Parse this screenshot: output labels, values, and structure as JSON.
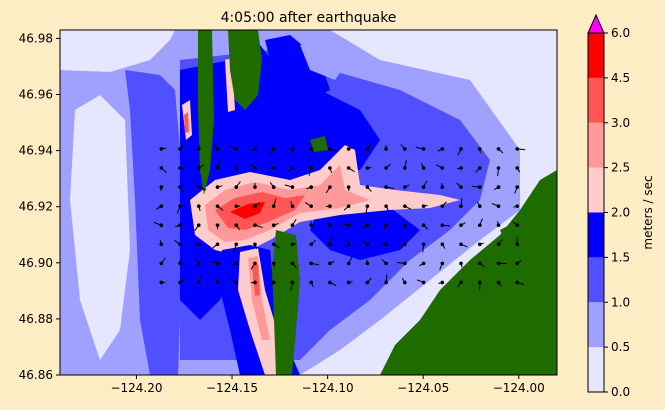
{
  "chart_data": {
    "type": "heatmap",
    "title": "4:05:00 after earthquake",
    "xlim": [
      -124.24,
      -123.98
    ],
    "ylim": [
      46.86,
      46.983
    ],
    "x_ticks": [
      {
        "value": -124.2,
        "label": "−124.20"
      },
      {
        "value": -124.15,
        "label": "−124.15"
      },
      {
        "value": -124.1,
        "label": "−124.10"
      },
      {
        "value": -124.05,
        "label": "−124.05"
      },
      {
        "value": -124.0,
        "label": "−124.00"
      }
    ],
    "y_ticks": [
      {
        "value": 46.86,
        "label": "46.86"
      },
      {
        "value": 46.88,
        "label": "46.88"
      },
      {
        "value": 46.9,
        "label": "46.90"
      },
      {
        "value": 46.92,
        "label": "46.92"
      },
      {
        "value": 46.94,
        "label": "46.94"
      },
      {
        "value": 46.96,
        "label": "46.96"
      },
      {
        "value": 46.98,
        "label": "46.98"
      }
    ],
    "colorbar": {
      "label": "meters / sec",
      "levels": [
        0.0,
        0.5,
        1.0,
        1.5,
        2.0,
        2.5,
        3.0,
        4.5,
        6.0
      ],
      "tick_labels": [
        "0.0",
        "0.5",
        "1.0",
        "1.5",
        "2.0",
        "2.5",
        "3.0",
        "4.5",
        "6.0"
      ],
      "colors": [
        "#e6e6ff",
        "#a0a0ff",
        "#5050ff",
        "#0000ff",
        "#ffcccc",
        "#ff9999",
        "#ff5555",
        "#ff0000"
      ],
      "extend_color": "#ff00ff"
    },
    "land_color": "#1e6b00"
  }
}
